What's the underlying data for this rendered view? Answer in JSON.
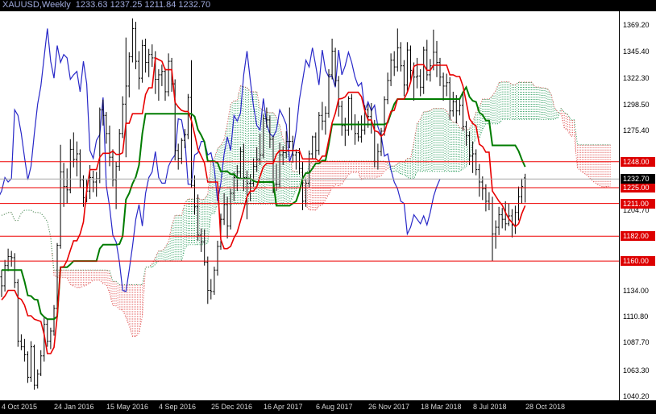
{
  "title": {
    "symbol_period": "XAUUSD,Weekly",
    "ohlc": "1233.63 1237.25 1211.84 1232.70"
  },
  "chart_data": {
    "type": "bar",
    "subtype": "weekly-ohlc-bars-with-ichimoku-cloud",
    "symbol": "XAUUSD",
    "timeframe": "Weekly",
    "current_bar": {
      "open": 1233.63,
      "high": 1237.25,
      "low": 1211.84,
      "close": 1232.7
    },
    "ylim": [
      1036.6,
      1381.3
    ],
    "visible_start": 26,
    "indicator": {
      "name": "Ichimoku Kinko Hyo",
      "tenkan": 9,
      "kijun": 26,
      "senkou": 52
    },
    "y_axis_labels": [
      {
        "price": 1369.2,
        "label": "1369.20"
      },
      {
        "price": 1345.4,
        "label": "1345.40"
      },
      {
        "price": 1322.3,
        "label": "1322.30"
      },
      {
        "price": 1298.5,
        "label": "1298.50"
      },
      {
        "price": 1275.4,
        "label": "1275.40"
      },
      {
        "price": 1204.7,
        "label": "1204.70"
      },
      {
        "price": 1134.0,
        "label": "1134.00"
      },
      {
        "price": 1110.8,
        "label": "1110.80"
      },
      {
        "price": 1087.7,
        "label": "1087.70"
      },
      {
        "price": 1063.3,
        "label": "1063.30"
      },
      {
        "price": 1040.2,
        "label": "1040.20"
      }
    ],
    "x_axis_dates": [
      {
        "label": "4 Oct 2015",
        "week": 0
      },
      {
        "label": "24 Jan 2016",
        "week": 16
      },
      {
        "label": "15 May 2016",
        "week": 32
      },
      {
        "label": "4 Sep 2016",
        "week": 48
      },
      {
        "label": "25 Dec 2016",
        "week": 64
      },
      {
        "label": "16 Apr 2017",
        "week": 80
      },
      {
        "label": "6 Aug 2017",
        "week": 96
      },
      {
        "label": "26 Nov 2017",
        "week": 112
      },
      {
        "label": "18 Mar 2018",
        "week": 128
      },
      {
        "label": "8 Jul 2018",
        "week": 144
      },
      {
        "label": "28 Oct 2018",
        "week": 160
      }
    ],
    "levels": [
      {
        "price": 1248.0,
        "label": "1248.00"
      },
      {
        "price": 1225.0,
        "label": "1225.00"
      },
      {
        "price": 1211.0,
        "label": "1211.00"
      },
      {
        "price": 1182.0,
        "label": "1182.00"
      },
      {
        "price": 1160.0,
        "label": "1160.00"
      }
    ],
    "bid": {
      "price": 1232.7,
      "label": "1232.70"
    },
    "colors": {
      "bars": "#000000",
      "chikou": "#2828c8",
      "tenkan": "#e80000",
      "kijun": "#007c00",
      "senkou_a": "#e05050",
      "senkou_b": "#2f9e60",
      "cloud_bear": "#e05050",
      "cloud_bull": "#2f9e60",
      "level": "#ee0000",
      "level_box": "#dd0000",
      "bid_line": "#a8a8a8",
      "bid_box": "#000000"
    },
    "bars": [
      [
        1202,
        1209,
        1192,
        1198
      ],
      [
        1198,
        1211,
        1195,
        1208
      ],
      [
        1208,
        1214,
        1198,
        1203
      ],
      [
        1203,
        1210,
        1194,
        1201
      ],
      [
        1201,
        1206,
        1178,
        1187
      ],
      [
        1187,
        1193,
        1178,
        1188
      ],
      [
        1188,
        1227,
        1184,
        1223
      ],
      [
        1223,
        1232,
        1204,
        1206
      ],
      [
        1206,
        1213,
        1200,
        1204
      ],
      [
        1204,
        1207,
        1184,
        1190
      ],
      [
        1190,
        1192,
        1174,
        1181
      ],
      [
        1181,
        1206,
        1178,
        1200
      ],
      [
        1200,
        1205,
        1173,
        1175
      ],
      [
        1175,
        1181,
        1166,
        1168
      ],
      [
        1168,
        1175,
        1158,
        1163
      ],
      [
        1163,
        1165,
        1130,
        1134
      ],
      [
        1134,
        1136,
        1072,
        1099
      ],
      [
        1099,
        1105,
        1077,
        1095
      ],
      [
        1095,
        1103,
        1081,
        1094
      ],
      [
        1094,
        1126,
        1088,
        1114
      ],
      [
        1114,
        1168,
        1110,
        1160
      ],
      [
        1160,
        1170,
        1117,
        1134
      ],
      [
        1134,
        1146,
        1121,
        1123
      ],
      [
        1123,
        1126,
        1097,
        1103
      ],
      [
        1103,
        1142,
        1100,
        1139
      ],
      [
        1139,
        1157,
        1121,
        1146
      ],
      [
        1146,
        1152,
        1128,
        1138
      ],
      [
        1138,
        1161,
        1133,
        1156
      ],
      [
        1156,
        1171,
        1151,
        1164
      ],
      [
        1164,
        1169,
        1155,
        1163
      ],
      [
        1163,
        1167,
        1136,
        1141
      ],
      [
        1141,
        1144,
        1084,
        1089
      ],
      [
        1089,
        1095,
        1081,
        1084
      ],
      [
        1084,
        1091,
        1071,
        1077
      ],
      [
        1077,
        1080,
        1052,
        1057
      ],
      [
        1057,
        1089,
        1053,
        1084
      ],
      [
        1084,
        1086,
        1046,
        1050
      ],
      [
        1050,
        1064,
        1047,
        1060
      ],
      [
        1060,
        1081,
        1058,
        1076
      ],
      [
        1076,
        1110,
        1071,
        1104
      ],
      [
        1104,
        1108,
        1084,
        1089
      ],
      [
        1089,
        1101,
        1082,
        1098
      ],
      [
        1098,
        1121,
        1094,
        1118
      ],
      [
        1118,
        1176,
        1115,
        1174
      ],
      [
        1174,
        1263,
        1171,
        1239
      ],
      [
        1239,
        1247,
        1208,
        1226
      ],
      [
        1226,
        1242,
        1211,
        1223
      ],
      [
        1223,
        1268,
        1220,
        1259
      ],
      [
        1259,
        1274,
        1243,
        1250
      ],
      [
        1250,
        1266,
        1235,
        1255
      ],
      [
        1255,
        1259,
        1225,
        1232
      ],
      [
        1232,
        1236,
        1208,
        1216
      ],
      [
        1216,
        1232,
        1212,
        1222
      ],
      [
        1222,
        1245,
        1215,
        1234
      ],
      [
        1234,
        1240,
        1221,
        1230
      ],
      [
        1230,
        1239,
        1217,
        1233
      ],
      [
        1233,
        1296,
        1229,
        1294
      ],
      [
        1294,
        1303,
        1280,
        1289
      ],
      [
        1289,
        1292,
        1264,
        1273
      ],
      [
        1273,
        1280,
        1244,
        1252
      ],
      [
        1252,
        1259,
        1226,
        1232
      ],
      [
        1232,
        1248,
        1206,
        1244
      ],
      [
        1244,
        1277,
        1240,
        1273
      ],
      [
        1273,
        1306,
        1269,
        1299
      ],
      [
        1299,
        1358,
        1252,
        1315
      ],
      [
        1315,
        1345,
        1305,
        1341
      ],
      [
        1341,
        1375,
        1336,
        1366
      ],
      [
        1366,
        1372,
        1330,
        1337
      ],
      [
        1337,
        1346,
        1312,
        1322
      ],
      [
        1322,
        1356,
        1318,
        1351
      ],
      [
        1351,
        1357,
        1327,
        1336
      ],
      [
        1336,
        1348,
        1323,
        1343
      ],
      [
        1343,
        1352,
        1332,
        1340
      ],
      [
        1340,
        1346,
        1308,
        1321
      ],
      [
        1321,
        1330,
        1302,
        1325
      ],
      [
        1325,
        1334,
        1315,
        1328
      ],
      [
        1328,
        1331,
        1302,
        1310
      ],
      [
        1310,
        1344,
        1306,
        1337
      ],
      [
        1337,
        1340,
        1310,
        1317
      ],
      [
        1317,
        1321,
        1249,
        1258
      ],
      [
        1258,
        1264,
        1241,
        1251
      ],
      [
        1251,
        1269,
        1246,
        1267
      ],
      [
        1267,
        1277,
        1260,
        1272
      ],
      [
        1272,
        1308,
        1268,
        1305
      ],
      [
        1305,
        1338,
        1225,
        1227
      ],
      [
        1227,
        1236,
        1201,
        1208
      ],
      [
        1208,
        1219,
        1178,
        1183
      ],
      [
        1183,
        1189,
        1168,
        1177
      ],
      [
        1177,
        1188,
        1156,
        1159
      ],
      [
        1159,
        1164,
        1122,
        1134
      ],
      [
        1134,
        1144,
        1126,
        1133
      ],
      [
        1133,
        1155,
        1130,
        1152
      ],
      [
        1152,
        1178,
        1147,
        1173
      ],
      [
        1173,
        1202,
        1170,
        1197
      ],
      [
        1197,
        1220,
        1192,
        1210
      ],
      [
        1210,
        1217,
        1180,
        1191
      ],
      [
        1191,
        1224,
        1188,
        1220
      ],
      [
        1220,
        1239,
        1213,
        1234
      ],
      [
        1234,
        1245,
        1222,
        1239
      ],
      [
        1239,
        1261,
        1233,
        1257
      ],
      [
        1257,
        1264,
        1222,
        1234
      ],
      [
        1234,
        1240,
        1197,
        1229
      ],
      [
        1229,
        1237,
        1213,
        1229
      ],
      [
        1229,
        1251,
        1226,
        1244
      ],
      [
        1244,
        1261,
        1239,
        1250
      ],
      [
        1250,
        1273,
        1245,
        1254
      ],
      [
        1254,
        1290,
        1251,
        1286
      ],
      [
        1286,
        1296,
        1278,
        1285
      ],
      [
        1285,
        1289,
        1260,
        1268
      ],
      [
        1268,
        1271,
        1220,
        1228
      ],
      [
        1228,
        1246,
        1222,
        1228
      ],
      [
        1228,
        1265,
        1225,
        1254
      ],
      [
        1254,
        1262,
        1245,
        1256
      ],
      [
        1256,
        1275,
        1251,
        1266
      ],
      [
        1266,
        1296,
        1260,
        1266
      ],
      [
        1266,
        1271,
        1247,
        1254
      ],
      [
        1254,
        1259,
        1241,
        1256
      ],
      [
        1256,
        1260,
        1237,
        1242
      ],
      [
        1242,
        1248,
        1205,
        1213
      ],
      [
        1213,
        1232,
        1208,
        1229
      ],
      [
        1229,
        1258,
        1225,
        1255
      ],
      [
        1255,
        1271,
        1250,
        1270
      ],
      [
        1270,
        1274,
        1251,
        1258
      ],
      [
        1258,
        1292,
        1254,
        1289
      ],
      [
        1289,
        1301,
        1276,
        1284
      ],
      [
        1284,
        1297,
        1272,
        1291
      ],
      [
        1291,
        1330,
        1287,
        1325
      ],
      [
        1325,
        1357,
        1321,
        1346
      ],
      [
        1346,
        1349,
        1315,
        1320
      ],
      [
        1320,
        1324,
        1288,
        1297
      ],
      [
        1297,
        1302,
        1271,
        1280
      ],
      [
        1280,
        1287,
        1262,
        1276
      ],
      [
        1276,
        1306,
        1271,
        1304
      ],
      [
        1304,
        1308,
        1276,
        1281
      ],
      [
        1281,
        1290,
        1263,
        1273
      ],
      [
        1273,
        1284,
        1266,
        1270
      ],
      [
        1270,
        1289,
        1265,
        1276
      ],
      [
        1276,
        1298,
        1272,
        1294
      ],
      [
        1294,
        1299,
        1278,
        1288
      ],
      [
        1288,
        1300,
        1273,
        1281
      ],
      [
        1281,
        1285,
        1243,
        1248
      ],
      [
        1248,
        1264,
        1241,
        1257
      ],
      [
        1257,
        1278,
        1253,
        1275
      ],
      [
        1275,
        1306,
        1271,
        1303
      ],
      [
        1303,
        1327,
        1299,
        1320
      ],
      [
        1320,
        1344,
        1315,
        1338
      ],
      [
        1338,
        1346,
        1324,
        1332
      ],
      [
        1332,
        1366,
        1328,
        1349
      ],
      [
        1349,
        1354,
        1328,
        1333
      ],
      [
        1333,
        1338,
        1306,
        1316
      ],
      [
        1316,
        1354,
        1310,
        1347
      ],
      [
        1347,
        1351,
        1320,
        1329
      ],
      [
        1329,
        1336,
        1302,
        1323
      ],
      [
        1323,
        1340,
        1313,
        1324
      ],
      [
        1324,
        1330,
        1306,
        1314
      ],
      [
        1314,
        1350,
        1308,
        1347
      ],
      [
        1347,
        1356,
        1320,
        1325
      ],
      [
        1325,
        1339,
        1319,
        1333
      ],
      [
        1333,
        1365,
        1329,
        1345
      ],
      [
        1345,
        1355,
        1323,
        1336
      ],
      [
        1336,
        1340,
        1315,
        1323
      ],
      [
        1323,
        1327,
        1302,
        1315
      ],
      [
        1315,
        1326,
        1306,
        1318
      ],
      [
        1318,
        1323,
        1285,
        1293
      ],
      [
        1293,
        1310,
        1288,
        1301
      ],
      [
        1301,
        1307,
        1282,
        1293
      ],
      [
        1293,
        1303,
        1289,
        1298
      ],
      [
        1298,
        1309,
        1275,
        1279
      ],
      [
        1279,
        1284,
        1262,
        1271
      ],
      [
        1271,
        1275,
        1245,
        1253
      ],
      [
        1253,
        1266,
        1238,
        1255
      ],
      [
        1255,
        1259,
        1236,
        1241
      ],
      [
        1241,
        1246,
        1217,
        1230
      ],
      [
        1230,
        1235,
        1214,
        1224
      ],
      [
        1224,
        1228,
        1204,
        1213
      ],
      [
        1213,
        1221,
        1205,
        1211
      ],
      [
        1211,
        1217,
        1160,
        1184
      ],
      [
        1184,
        1196,
        1171,
        1190
      ],
      [
        1190,
        1208,
        1183,
        1201
      ],
      [
        1201,
        1207,
        1189,
        1197
      ],
      [
        1197,
        1213,
        1187,
        1193
      ],
      [
        1193,
        1211,
        1191,
        1200
      ],
      [
        1200,
        1206,
        1181,
        1192
      ],
      [
        1192,
        1209,
        1184,
        1203
      ],
      [
        1203,
        1226,
        1196,
        1217
      ],
      [
        1217,
        1233,
        1211,
        1226
      ],
      [
        1233.63,
        1237.25,
        1211.84,
        1232.7
      ]
    ]
  }
}
